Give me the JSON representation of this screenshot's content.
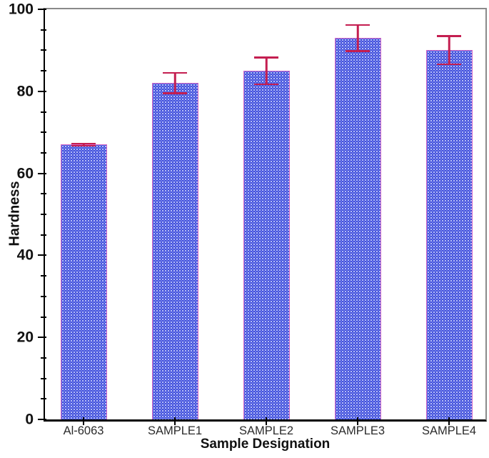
{
  "chart_data": {
    "type": "bar",
    "title": "",
    "xlabel": "Sample Designation",
    "ylabel": "Hardness",
    "categories": [
      "Al-6063",
      "SAMPLE1",
      "SAMPLE2",
      "SAMPLE3",
      "SAMPLE4"
    ],
    "values": [
      67,
      82,
      85,
      93,
      90
    ],
    "errors": [
      0.3,
      2.5,
      3.3,
      3.2,
      3.5
    ],
    "ylim": [
      0,
      100
    ],
    "y_major_ticks": [
      0,
      20,
      40,
      60,
      80,
      100
    ],
    "y_minor_step": 5,
    "grid": false,
    "legend_position": "none",
    "bar_pattern": "dotted-grid"
  },
  "colors": {
    "bar_fill": "#2b38d6",
    "bar_dot": "#b4bef6",
    "bar_dot2": "#6f7fe8",
    "bar_border": "#d468c4",
    "error_bar": "#c41e50",
    "axis": "#000000",
    "frame": "#8a8a8a",
    "x_tick_label": "#2b2b2b"
  }
}
